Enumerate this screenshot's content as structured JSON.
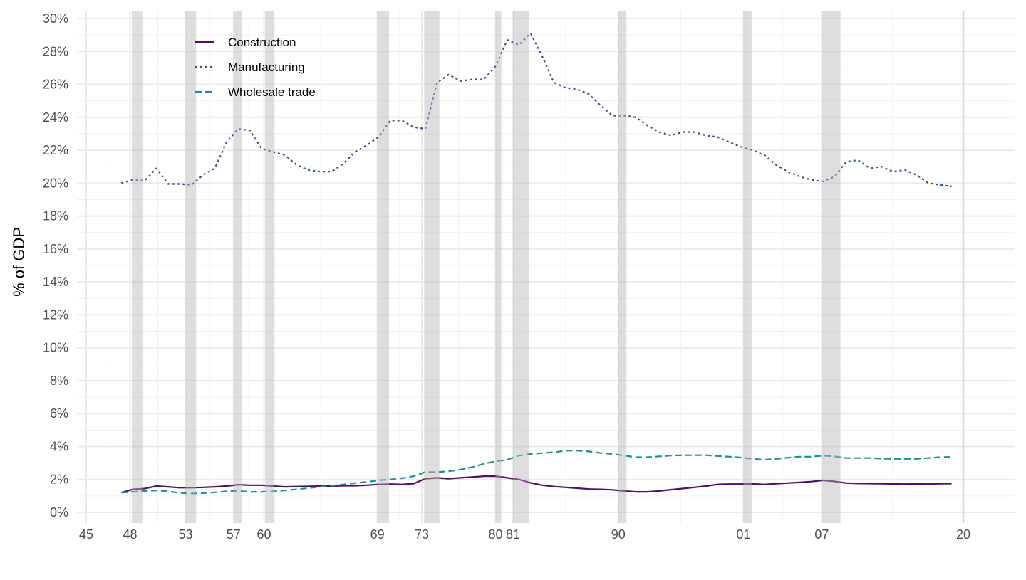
{
  "chart_data": {
    "type": "line",
    "title": "",
    "xlabel": "",
    "ylabel": "% of GDP",
    "xlim": [
      1944.2,
      2024
    ],
    "ylim": [
      0,
      30
    ],
    "grid": true,
    "legend_position": "top-left",
    "y_ticks": [
      0,
      2,
      4,
      6,
      8,
      10,
      12,
      14,
      16,
      18,
      20,
      22,
      24,
      26,
      28,
      30
    ],
    "y_tick_labels": [
      "0%",
      "2%",
      "4%",
      "6%",
      "8%",
      "10%",
      "12%",
      "14%",
      "16%",
      "18%",
      "20%",
      "22%",
      "24%",
      "26%",
      "28%",
      "30%"
    ],
    "x_ticks": [
      1945,
      1948.75,
      1953.5,
      1957.6,
      1960.2,
      1969.9,
      1973.7,
      1980.0,
      1981.5,
      1990.5,
      2001.2,
      2007.9,
      2020
    ],
    "x_tick_labels": [
      "45",
      "48",
      "53",
      "57",
      "60",
      "69",
      "73",
      "80",
      "81",
      "90",
      "01",
      "07",
      "20"
    ],
    "recessions": [
      [
        1948.9,
        1949.8
      ],
      [
        1953.5,
        1954.4
      ],
      [
        1957.6,
        1958.3
      ],
      [
        1960.3,
        1961.1
      ],
      [
        1969.9,
        1970.9
      ],
      [
        1973.9,
        1975.2
      ],
      [
        1980.0,
        1980.5
      ],
      [
        1981.5,
        1982.9
      ],
      [
        1990.5,
        1991.2
      ],
      [
        2001.2,
        2001.9
      ],
      [
        2007.9,
        2009.5
      ]
    ],
    "reference_line_x": 2020,
    "x_start": 1948,
    "series": [
      {
        "name": "Construction",
        "color": "#4a1262",
        "dash": "",
        "values": [
          1.2,
          1.4,
          1.45,
          1.6,
          1.55,
          1.5,
          1.5,
          1.52,
          1.55,
          1.6,
          1.68,
          1.65,
          1.65,
          1.6,
          1.55,
          1.57,
          1.58,
          1.6,
          1.6,
          1.62,
          1.62,
          1.65,
          1.7,
          1.72,
          1.7,
          1.75,
          2.05,
          2.1,
          2.05,
          2.1,
          2.15,
          2.2,
          2.2,
          2.1,
          2.0,
          1.8,
          1.65,
          1.57,
          1.52,
          1.47,
          1.42,
          1.4,
          1.37,
          1.3,
          1.25,
          1.25,
          1.3,
          1.38,
          1.45,
          1.52,
          1.6,
          1.7,
          1.72,
          1.72,
          1.73,
          1.7,
          1.74,
          1.78,
          1.82,
          1.87,
          1.95,
          1.88,
          1.78,
          1.76,
          1.75,
          1.74,
          1.73,
          1.72,
          1.73,
          1.72,
          1.74,
          1.75
        ]
      },
      {
        "name": "Manufacturing",
        "color": "#3b528b",
        "dash": "3,4",
        "values": [
          20.0,
          20.2,
          20.15,
          20.9,
          19.95,
          19.95,
          19.9,
          20.5,
          20.9,
          22.5,
          23.3,
          23.2,
          22.1,
          21.9,
          21.7,
          21.1,
          20.8,
          20.7,
          20.7,
          21.2,
          21.9,
          22.3,
          22.8,
          23.8,
          23.8,
          23.4,
          23.3,
          26.1,
          26.6,
          26.2,
          26.3,
          26.3,
          27.1,
          28.7,
          28.4,
          29.1,
          27.7,
          26.1,
          25.8,
          25.7,
          25.4,
          24.7,
          24.1,
          24.1,
          24.0,
          23.5,
          23.1,
          22.9,
          23.1,
          23.1,
          22.9,
          22.8,
          22.5,
          22.2,
          22.0,
          21.7,
          21.1,
          20.7,
          20.4,
          20.2,
          20.1,
          20.4,
          21.3,
          21.4,
          20.9,
          21.0,
          20.7,
          20.8,
          20.5,
          20.0,
          19.9,
          19.8
        ]
      },
      {
        "name": "Wholesale trade",
        "color": "#21908c",
        "dash": "9,5",
        "values": [
          1.2,
          1.25,
          1.3,
          1.33,
          1.28,
          1.18,
          1.15,
          1.17,
          1.22,
          1.28,
          1.3,
          1.25,
          1.25,
          1.28,
          1.33,
          1.4,
          1.48,
          1.55,
          1.62,
          1.7,
          1.78,
          1.85,
          1.95,
          2.0,
          2.08,
          2.2,
          2.45,
          2.45,
          2.5,
          2.6,
          2.75,
          2.95,
          3.1,
          3.2,
          3.45,
          3.55,
          3.6,
          3.65,
          3.75,
          3.75,
          3.7,
          3.6,
          3.55,
          3.45,
          3.35,
          3.35,
          3.4,
          3.45,
          3.47,
          3.47,
          3.47,
          3.42,
          3.38,
          3.33,
          3.25,
          3.2,
          3.25,
          3.32,
          3.38,
          3.38,
          3.45,
          3.4,
          3.3,
          3.3,
          3.3,
          3.27,
          3.25,
          3.25,
          3.25,
          3.3,
          3.35,
          3.37
        ]
      }
    ]
  }
}
